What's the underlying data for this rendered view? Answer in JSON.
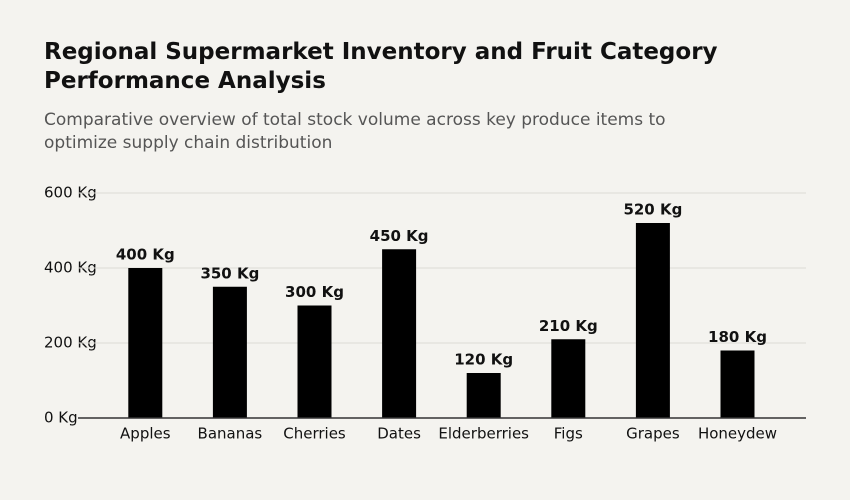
{
  "chart_data": {
    "type": "bar",
    "title": "Regional Supermarket Inventory and Fruit Category Performance Analysis",
    "subtitle": "Comparative overview of total stock volume across key produce items to optimize supply chain distribution",
    "categories": [
      "Apples",
      "Bananas",
      "Cherries",
      "Dates",
      "Elderberries",
      "Figs",
      "Grapes",
      "Honeydew"
    ],
    "values": [
      400,
      350,
      300,
      450,
      120,
      210,
      520,
      180
    ],
    "value_labels": [
      "400 Kg",
      "350 Kg",
      "300 Kg",
      "450 Kg",
      "120 Kg",
      "210 Kg",
      "520 Kg",
      "180 Kg"
    ],
    "color": "#000000",
    "ylim": [
      0,
      600
    ],
    "yticks": [
      {
        "value": 0,
        "label": "0 Kg"
      },
      {
        "value": 200,
        "label": "200 Kg"
      },
      {
        "value": 400,
        "label": "400 Kg"
      },
      {
        "value": 600,
        "label": "600 Kg"
      }
    ],
    "grid": true
  }
}
